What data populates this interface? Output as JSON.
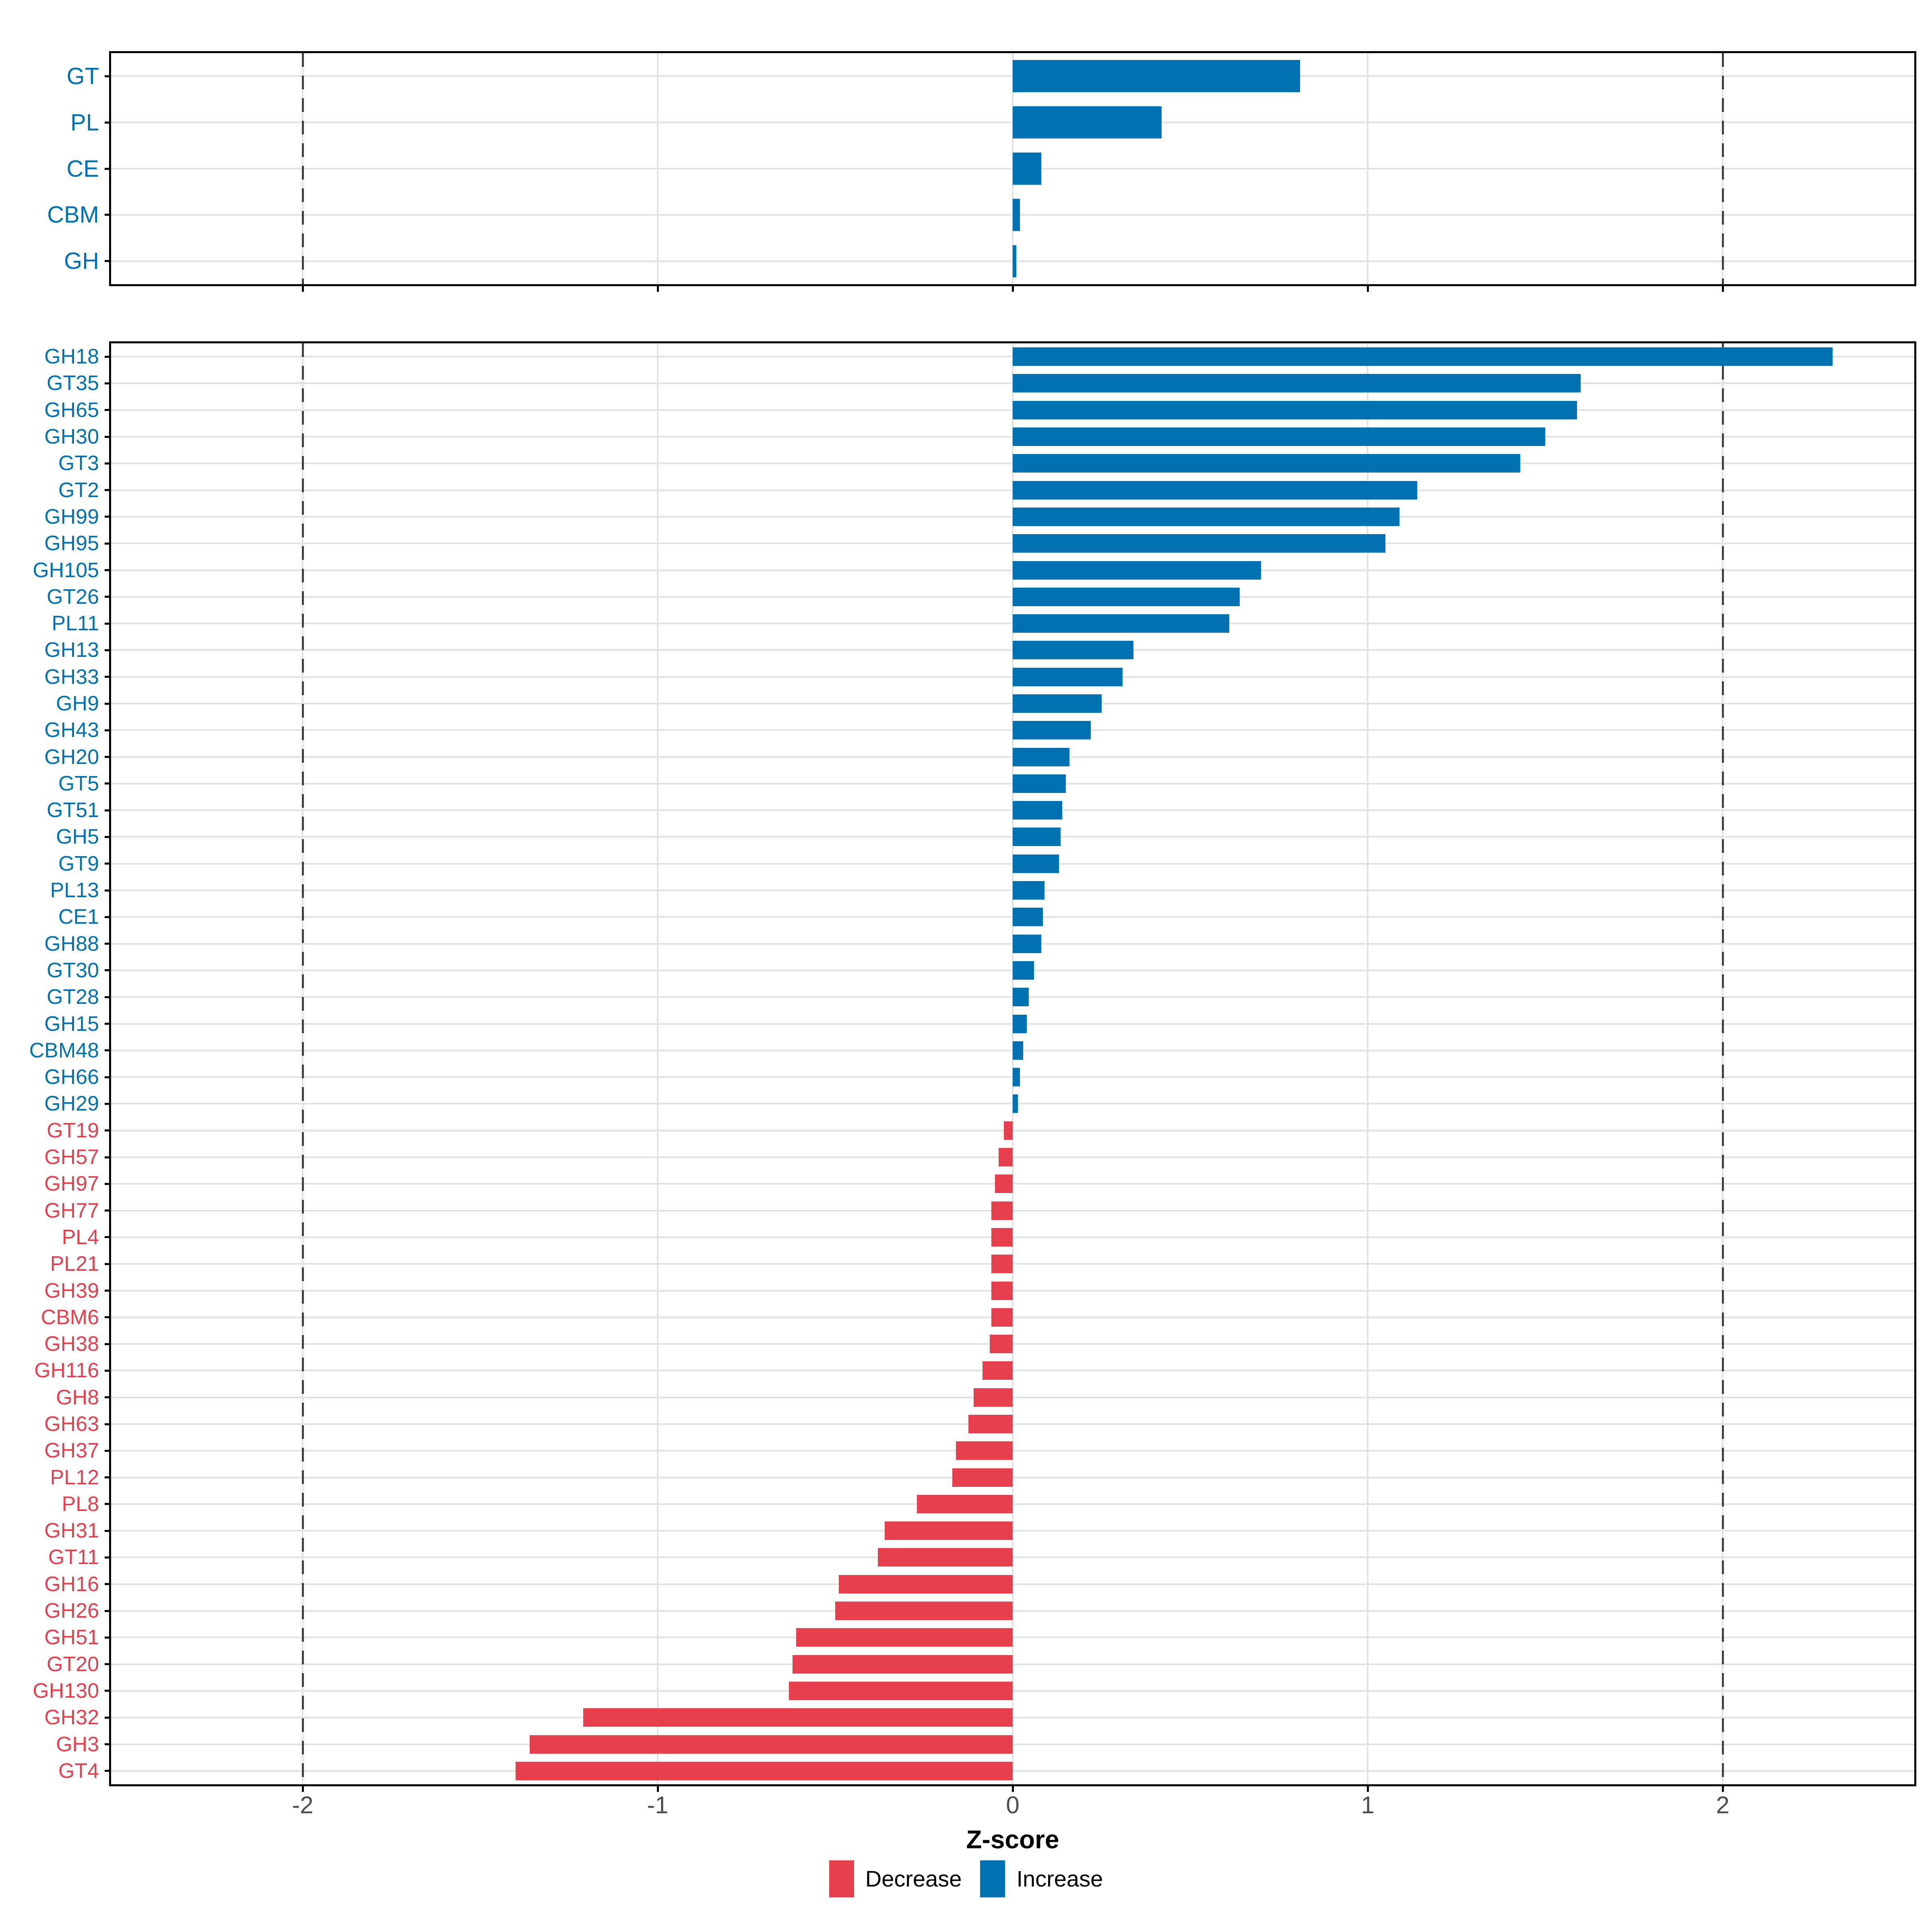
{
  "axis": {
    "xlabel": "Z-score",
    "tick_labels": [
      "-2",
      "-1",
      "0",
      "1",
      "2"
    ],
    "tick_values": [
      -2,
      -1,
      0,
      1,
      2
    ],
    "xlim": [
      -2.54,
      2.54
    ],
    "dashed_guides": [
      -2,
      2
    ],
    "tick_label_color": "#4D4D4D"
  },
  "legend": {
    "items": [
      {
        "label": "Decrease",
        "color": "#E6404E"
      },
      {
        "label": "Increase",
        "color": "#0072B2"
      }
    ]
  },
  "colors": {
    "increase": "#0072B2",
    "decrease": "#E6404E",
    "gridline": "#E2E2E2",
    "dashed_guide": "#3F3F3F",
    "panel_border": "#000000",
    "tick_mark": "#000000"
  },
  "chart_data": [
    {
      "type": "bar",
      "orientation": "horizontal",
      "panel": "class",
      "categories": [
        "GT",
        "PL",
        "CE",
        "CBM",
        "GH"
      ],
      "values": [
        0.81,
        0.42,
        0.08,
        0.02,
        0.01
      ],
      "xlabel": "Z-score",
      "xlim": [
        -2.54,
        2.54
      ],
      "grid": true,
      "color_rule": "positive=Increase(blue), negative=Decrease(red)"
    },
    {
      "type": "bar",
      "orientation": "horizontal",
      "panel": "family",
      "categories": [
        "GH18",
        "GT35",
        "GH65",
        "GH30",
        "GT3",
        "GT2",
        "GH99",
        "GH95",
        "GH105",
        "GT26",
        "PL11",
        "GH13",
        "GH33",
        "GH9",
        "GH43",
        "GH20",
        "GT5",
        "GT51",
        "GH5",
        "GT9",
        "PL13",
        "CE1",
        "GH88",
        "GT30",
        "GT28",
        "GH15",
        "CBM48",
        "GH66",
        "GH29",
        "GT19",
        "GH57",
        "GH97",
        "GH77",
        "PL4",
        "PL21",
        "GH39",
        "CBM6",
        "GH38",
        "GH116",
        "GH8",
        "GH63",
        "GH37",
        "PL12",
        "PL8",
        "GH31",
        "GT11",
        "GH16",
        "GH26",
        "GH51",
        "GT20",
        "GH130",
        "GH32",
        "GH3",
        "GT4"
      ],
      "values": [
        2.31,
        1.6,
        1.59,
        1.5,
        1.43,
        1.14,
        1.09,
        1.05,
        0.7,
        0.64,
        0.61,
        0.34,
        0.31,
        0.25,
        0.22,
        0.16,
        0.15,
        0.14,
        0.135,
        0.13,
        0.09,
        0.085,
        0.08,
        0.06,
        0.045,
        0.04,
        0.03,
        0.02,
        0.015,
        -0.025,
        -0.04,
        -0.05,
        -0.06,
        -0.06,
        -0.06,
        -0.06,
        -0.06,
        -0.065,
        -0.085,
        -0.11,
        -0.125,
        -0.16,
        -0.17,
        -0.27,
        -0.36,
        -0.38,
        -0.49,
        -0.5,
        -0.61,
        -0.62,
        -0.63,
        -1.21,
        -1.36,
        -1.4
      ],
      "xlabel": "Z-score",
      "xlim": [
        -2.54,
        2.54
      ],
      "grid": true,
      "color_rule": "positive=Increase(blue), negative=Decrease(red)"
    }
  ]
}
